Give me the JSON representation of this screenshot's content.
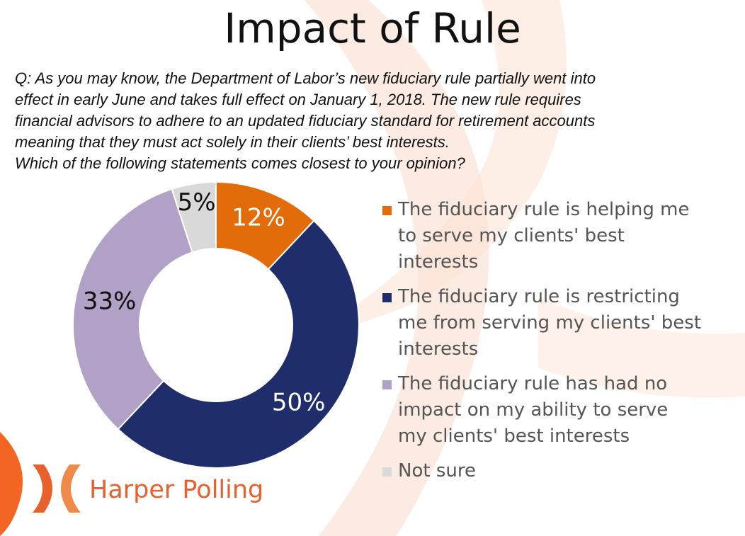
{
  "title": "Impact of Rule",
  "question_lines": [
    "Q: As you may know, the Department of Labor’s new fiduciary rule partially went into",
    "effect in early June and takes full effect on January 1, 2018. The new rule requires",
    "financial advisors to adhere to an updated fiduciary standard for retirement accounts",
    "meaning that they must act solely in their clients’ best interests.",
    "Which of the following statements comes closest to your opinion?"
  ],
  "chart_data": {
    "type": "pie",
    "donut": true,
    "categories": [
      "The fiduciary rule is helping me to serve my clients' best interests",
      "The fiduciary rule is restricting me from serving my clients' best interests",
      "The fiduciary rule has had no impact on my ability to serve my clients' best interests",
      "Not sure"
    ],
    "values": [
      12,
      50,
      33,
      5
    ],
    "data_labels": [
      "12%",
      "50%",
      "33%",
      "5%"
    ],
    "colors": [
      "#e36c0a",
      "#1f2d6a",
      "#b2a1c7",
      "#d9d9d9"
    ],
    "label_colors": [
      "#ffffff",
      "#ffffff",
      "#111111",
      "#111111"
    ],
    "legend_position": "right"
  },
  "legend": [
    {
      "lines": [
        "The fiduciary rule is helping me",
        "to serve my clients' best",
        "interests"
      ]
    },
    {
      "lines": [
        "The fiduciary rule is restricting",
        "me from serving my clients' best",
        "interests"
      ]
    },
    {
      "lines": [
        "The fiduciary rule has had no",
        "impact on my ability to serve",
        "my clients' best interests"
      ]
    },
    {
      "lines": [
        "Not sure"
      ]
    }
  ],
  "logo": {
    "text": "Harper Polling",
    "icon": "harper-polling-x-icon",
    "color": "#e8612c"
  },
  "watermark_color": "#fbe3d6"
}
